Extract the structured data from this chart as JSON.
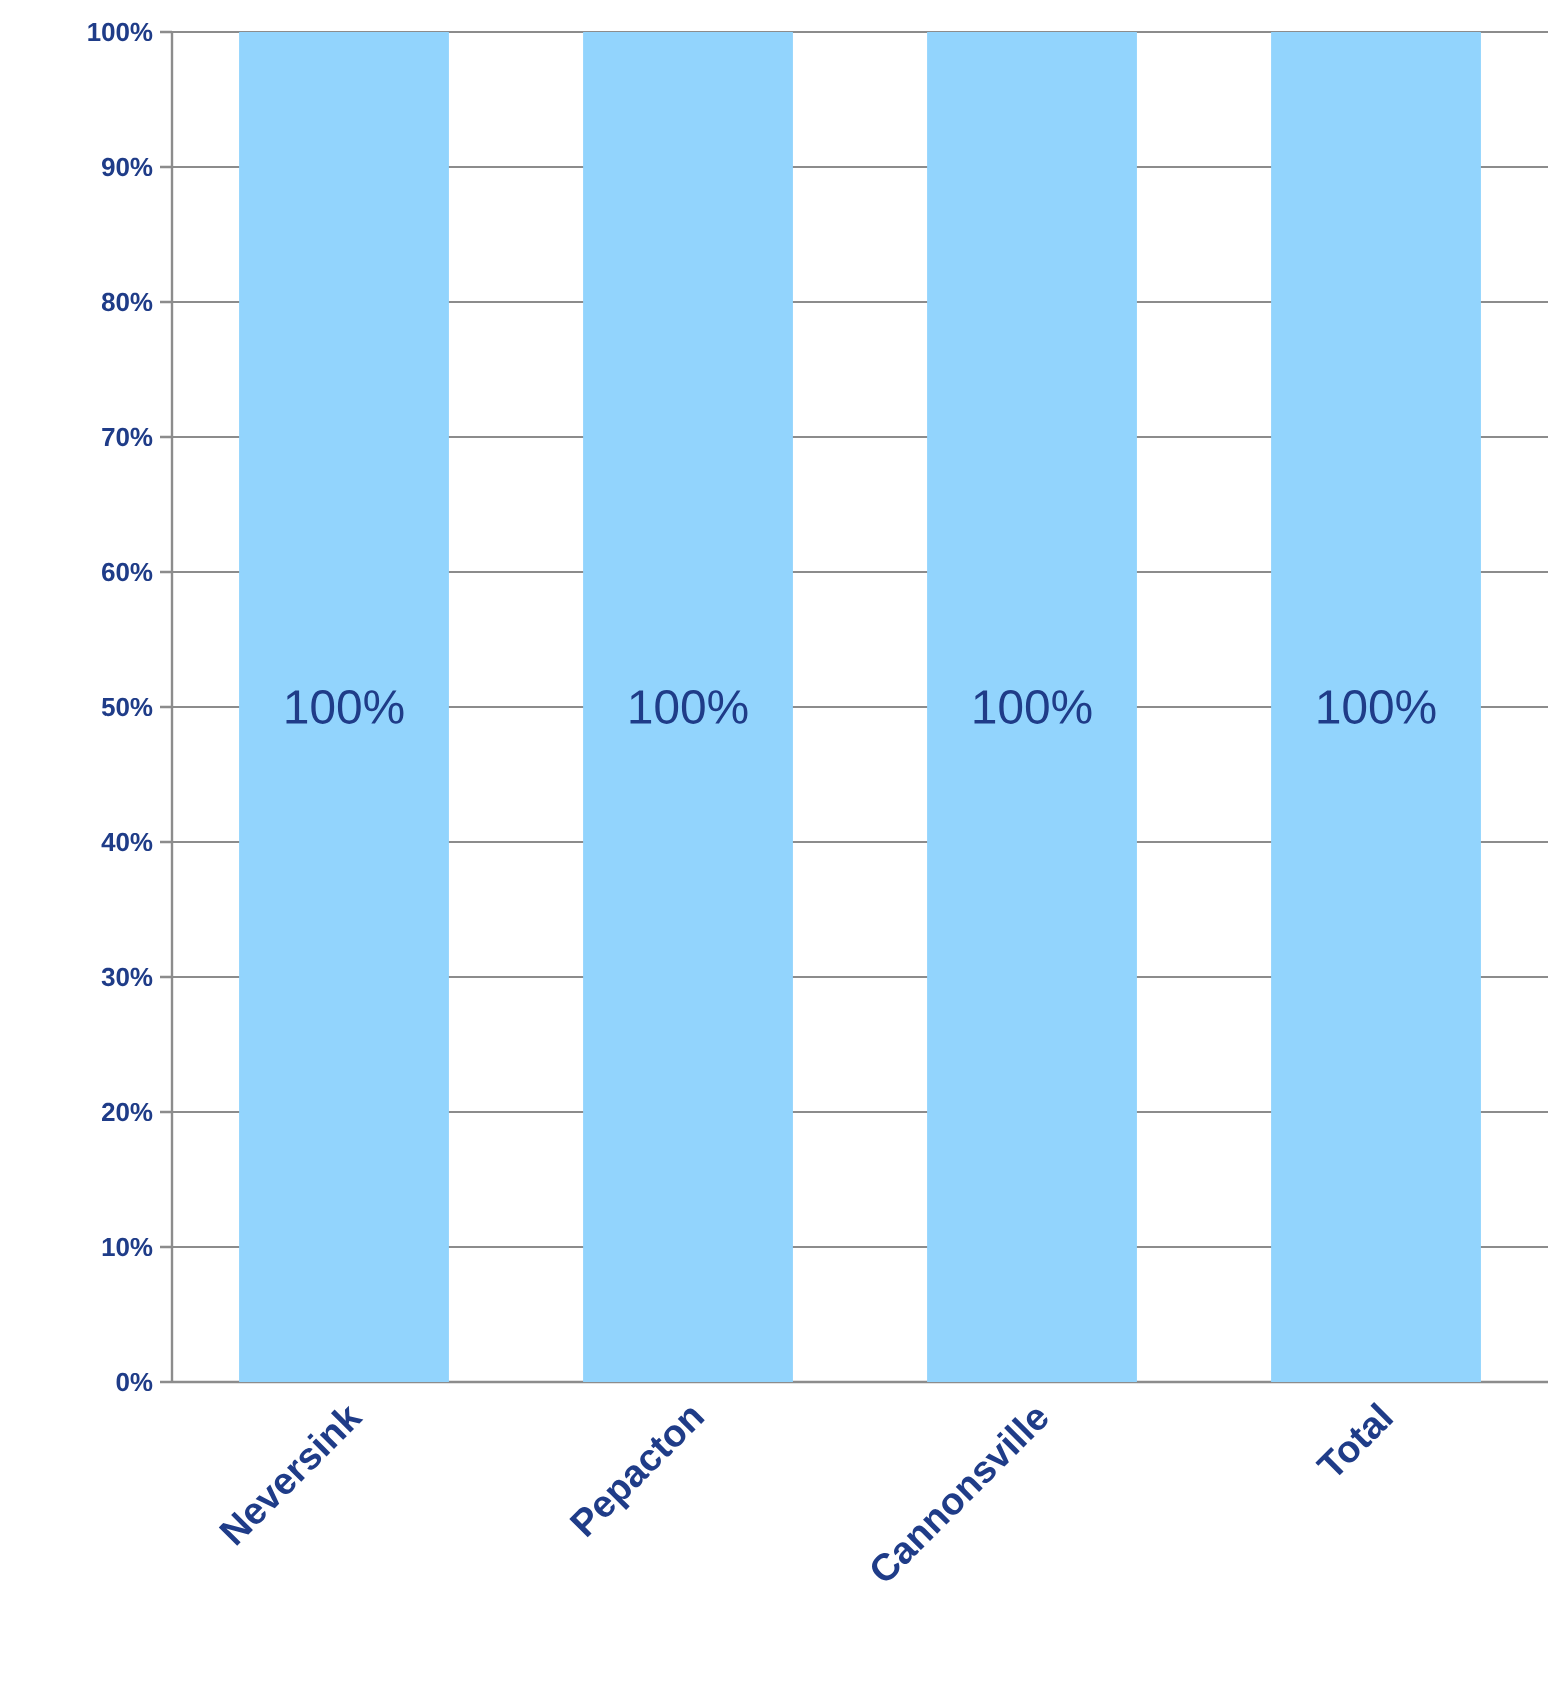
{
  "chart_data": {
    "type": "bar",
    "categories": [
      "Neversink",
      "Pepacton",
      "Cannonsville",
      "Total"
    ],
    "values": [
      100,
      100,
      100,
      100
    ],
    "value_labels": [
      "100%",
      "100%",
      "100%",
      "100%"
    ],
    "color": "#92d4fd",
    "ylim": [
      0,
      100
    ],
    "yticks": [
      {
        "value": 0,
        "label": "0%"
      },
      {
        "value": 10,
        "label": "10%"
      },
      {
        "value": 20,
        "label": "20%"
      },
      {
        "value": 30,
        "label": "30%"
      },
      {
        "value": 40,
        "label": "40%"
      },
      {
        "value": 50,
        "label": "50%"
      },
      {
        "value": 60,
        "label": "60%"
      },
      {
        "value": 70,
        "label": "70%"
      },
      {
        "value": 80,
        "label": "80%"
      },
      {
        "value": 90,
        "label": "90%"
      },
      {
        "value": 100,
        "label": "100%"
      }
    ],
    "grid": "y"
  }
}
